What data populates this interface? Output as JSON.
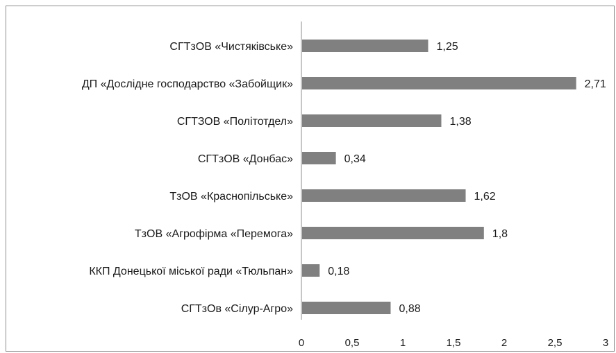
{
  "chart_data": {
    "type": "bar",
    "orientation": "horizontal",
    "categories": [
      "СГТзОВ «Чистяківське»",
      "ДП «Дослідне господарство «Забойщик»",
      "СГТЗОВ «Політотдел»",
      "СГТзОВ «Донбас»",
      "ТзОВ «Краснопільське»",
      "ТзОВ «Агрофірма «Перемога»",
      "ККП Донецької міської ради «Тюльпан»",
      "СГТзОв «Сілур-Агро»"
    ],
    "values": [
      1.25,
      2.71,
      1.38,
      0.34,
      1.62,
      1.8,
      0.18,
      0.88
    ],
    "value_labels": [
      "1,25",
      "2,71",
      "1,38",
      "0,34",
      "1,62",
      "1,8",
      "0,18",
      "0,88"
    ],
    "x_ticks": [
      "0",
      "0,5",
      "1",
      "1,5",
      "2",
      "2,5",
      "3"
    ],
    "xlim": [
      0,
      3
    ],
    "grid": false,
    "legend": "none",
    "title": "",
    "xlabel": "",
    "ylabel": "",
    "colors": {
      "bar": "#808080",
      "axis": "#8c8c8c",
      "text": "#1a1a1a"
    }
  }
}
